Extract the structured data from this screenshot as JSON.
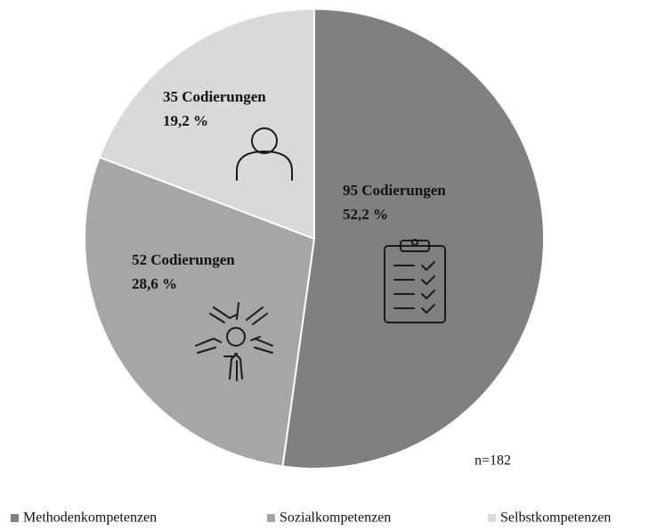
{
  "chart_data": {
    "type": "pie",
    "categories": [
      "Methodenkompetenzen",
      "Sozialkompetenzen",
      "Selbstkompetenzen"
    ],
    "values": [
      95,
      52,
      35
    ],
    "value_labels": [
      "95 Codierungen",
      "52 Codierungen",
      "35 Codierungen"
    ],
    "percentages": [
      52.2,
      28.6,
      19.2
    ],
    "percentage_labels": [
      "52,2 %",
      "28,6 %",
      "19,2 %"
    ],
    "colors": [
      "#808080",
      "#a6a6a6",
      "#d9d9d9"
    ],
    "annotation": "n=182",
    "legend": "bottom"
  }
}
